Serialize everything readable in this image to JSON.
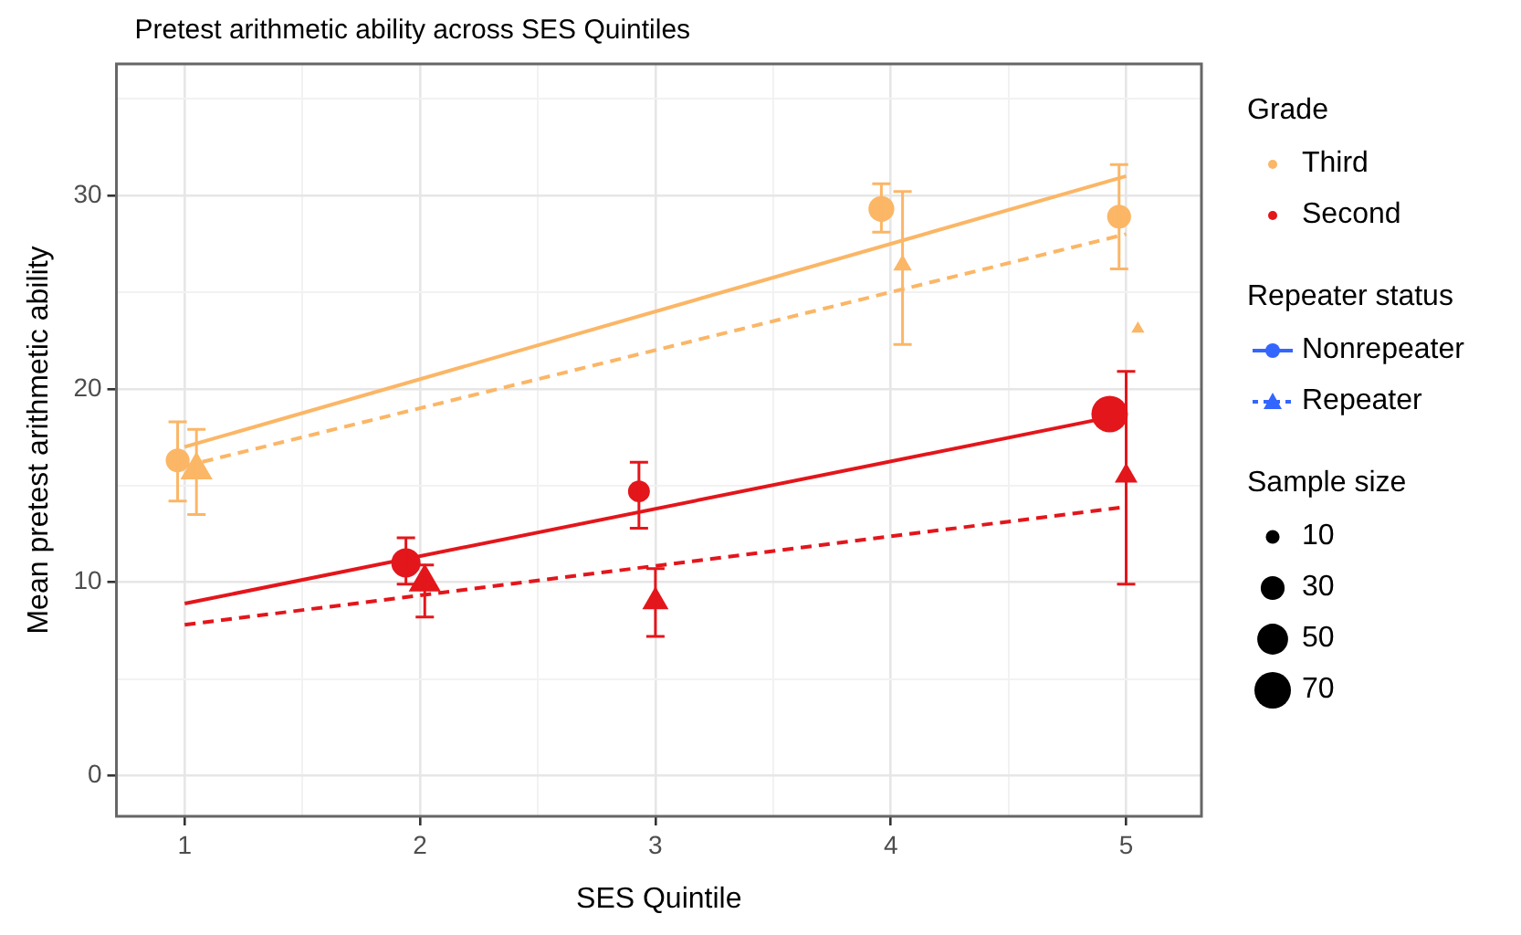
{
  "chart_data": {
    "type": "bubble",
    "title": "Pretest arithmetic ability across SES Quintiles",
    "xlabel": "SES Quintile",
    "ylabel": "Mean pretest arithmetic ability",
    "legend_title": "Grade",
    "annotations": [
      "Repeater status",
      "Nonrepeater",
      "Repeater",
      "Sample size"
    ],
    "xlim": [
      0.71,
      5.32
    ],
    "ylim": [
      -2.1,
      36.8
    ],
    "xticks": [
      1,
      {
        "value": 1.5,
        "label": null
      },
      2,
      {
        "value": 2.5,
        "label": null
      },
      3,
      {
        "value": 3.5,
        "label": null
      },
      4,
      {
        "value": 4.5,
        "label": null
      },
      5
    ],
    "yticks": [
      0,
      {
        "value": 5,
        "label": null
      },
      10,
      {
        "value": 15,
        "label": null
      },
      20,
      {
        "value": 25,
        "label": null
      },
      30,
      {
        "value": 35,
        "label": null
      }
    ],
    "grid": true,
    "legend": "right",
    "size_legend": [
      10,
      30,
      50,
      70
    ],
    "series": [
      {
        "name": "Third",
        "marker": "circle",
        "color": "#fbb666",
        "x": [
          0.97,
          3.96,
          4.97
        ],
        "values": [
          16.3,
          29.3,
          28.9
        ],
        "sizes": [
          30,
          35,
          30
        ],
        "errors": [
          [
            14.2,
            18.3
          ],
          [
            28.1,
            30.6
          ],
          [
            26.2,
            31.6
          ]
        ]
      },
      {
        "marker": "triangle",
        "color": "#fbb666",
        "x": [
          1.05,
          4.05,
          5.05
        ],
        "values": [
          15.8,
          26.4,
          23.1
        ],
        "sizes": [
          30,
          10,
          5
        ],
        "errors": [
          [
            13.5,
            17.9
          ],
          [
            22.3,
            30.2
          ],
          null
        ]
      },
      {
        "name": "Second",
        "marker": "circle",
        "color": "#e3161b",
        "x": [
          1.94,
          2.93,
          4.93
        ],
        "values": [
          11.0,
          14.7,
          18.7
        ],
        "sizes": [
          45,
          25,
          70
        ],
        "errors": [
          [
            9.9,
            12.3
          ],
          [
            12.8,
            16.2
          ],
          null
        ]
      },
      {
        "marker": "triangle",
        "color": "#e3161b",
        "x": [
          2.02,
          3.0,
          5.0
        ],
        "values": [
          10.0,
          9.0,
          15.5
        ],
        "sizes": [
          30,
          20,
          15
        ],
        "errors": [
          [
            8.2,
            10.9
          ],
          [
            7.2,
            10.7
          ],
          [
            9.9,
            20.9
          ]
        ]
      },
      {
        "type": "line",
        "marker": "none",
        "line_style": "solid",
        "color": "#fbb666",
        "x": [
          1,
          5
        ],
        "values": [
          17.0,
          31.0
        ]
      },
      {
        "type": "line",
        "marker": "none",
        "line_style": "dashed",
        "color": "#fbb666",
        "x": [
          1,
          5
        ],
        "values": [
          16.0,
          28.0
        ]
      },
      {
        "type": "line",
        "marker": "none",
        "line_style": "solid",
        "color": "#e3161b",
        "x": [
          1,
          5
        ],
        "values": [
          8.9,
          18.7
        ]
      },
      {
        "type": "line",
        "marker": "none",
        "line_style": "dashed",
        "color": "#e3161b",
        "x": [
          1,
          5
        ],
        "values": [
          7.8,
          13.9
        ]
      }
    ]
  }
}
